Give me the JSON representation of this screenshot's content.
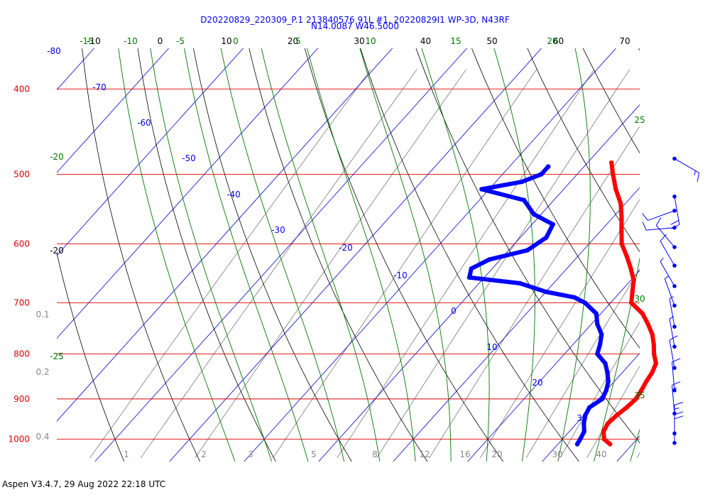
{
  "header": {
    "line1": "D20220829_220309_P.1 213840576 91L #1, 20220829I1 WP-3D, N43RF",
    "line2": "N14.0087 W46.5000"
  },
  "footer": "Aspen V3.4.7, 29 Aug 2022  22:18 UTC",
  "colors": {
    "isobar": "#dd0000",
    "isotherm": "#000000",
    "dry_adiabat": "#000000",
    "moist_adiabat": "#007700",
    "mixing_ratio": "#777777",
    "temperature": "#ff0000",
    "dewpoint": "#0000ff",
    "wind_barb": "#0000ff",
    "top_scale": "#007700"
  },
  "chart_data": {
    "type": "skew-t",
    "pressure_range_hpa": [
      1025,
      375
    ],
    "temperature_range_c": [
      -20,
      45
    ],
    "isobars": [
      "400",
      "500",
      "600",
      "700",
      "800",
      "900",
      "1000"
    ],
    "top_temperature_labels": [
      "-10",
      "0",
      "10",
      "20",
      "30",
      "40",
      "50",
      "60",
      "70"
    ],
    "top_theta_labels": [
      "-15",
      "-10",
      "-5",
      "0",
      "5",
      "10",
      "15",
      "20"
    ],
    "isotherm_labels": [
      "-80",
      "-70",
      "-60",
      "-50",
      "-40",
      "-30",
      "-20",
      "-10",
      "0",
      "10",
      "20",
      "30"
    ],
    "left_edge_labels": [
      "-20",
      "-20",
      "-25"
    ],
    "right_edge_labels": [
      "25",
      "30",
      "35"
    ],
    "mixing_ratio_labels": [
      "1",
      "2",
      "3",
      "5",
      "8",
      "12",
      "16",
      "20",
      "30",
      "40"
    ],
    "left_scale_labels": [
      "0.1",
      "0.2",
      "0.4"
    ],
    "temperature_profile": [
      [
        1013,
        27.0
      ],
      [
        1000,
        25.6
      ],
      [
        980,
        24.6
      ],
      [
        960,
        24.2
      ],
      [
        940,
        24.4
      ],
      [
        920,
        24.8
      ],
      [
        900,
        25.0
      ],
      [
        880,
        24.7
      ],
      [
        860,
        24.3
      ],
      [
        840,
        24.0
      ],
      [
        820,
        23.4
      ],
      [
        800,
        22.0
      ],
      [
        780,
        20.8
      ],
      [
        760,
        19.4
      ],
      [
        740,
        17.6
      ],
      [
        720,
        15.6
      ],
      [
        700,
        12.8
      ],
      [
        680,
        11.6
      ],
      [
        660,
        10.4
      ],
      [
        640,
        8.6
      ],
      [
        620,
        6.6
      ],
      [
        600,
        4.4
      ],
      [
        580,
        2.8
      ],
      [
        560,
        1.2
      ],
      [
        540,
        -0.6
      ],
      [
        520,
        -3.0
      ],
      [
        500,
        -5.2
      ],
      [
        485,
        -6.8
      ]
    ],
    "dewpoint_profile": [
      [
        1013,
        22.6
      ],
      [
        1000,
        22.4
      ],
      [
        980,
        22.0
      ],
      [
        960,
        21.0
      ],
      [
        940,
        20.2
      ],
      [
        920,
        19.8
      ],
      [
        900,
        20.5
      ],
      [
        880,
        20.0
      ],
      [
        860,
        19.2
      ],
      [
        840,
        18.0
      ],
      [
        820,
        16.6
      ],
      [
        800,
        14.4
      ],
      [
        780,
        13.6
      ],
      [
        760,
        12.6
      ],
      [
        740,
        10.8
      ],
      [
        720,
        9.4
      ],
      [
        700,
        6.6
      ],
      [
        690,
        4.5
      ],
      [
        680,
        0.0
      ],
      [
        665,
        -4.5
      ],
      [
        655,
        -12.0
      ],
      [
        640,
        -12.8
      ],
      [
        625,
        -11.5
      ],
      [
        610,
        -7.5
      ],
      [
        590,
        -6.5
      ],
      [
        570,
        -7.2
      ],
      [
        555,
        -11.0
      ],
      [
        535,
        -14.0
      ],
      [
        520,
        -21.0
      ],
      [
        510,
        -16.5
      ],
      [
        500,
        -14.8
      ],
      [
        490,
        -14.8
      ]
    ],
    "wind_barb_levels": [
      [
        480,
        "120",
        15
      ],
      [
        530,
        "170",
        20
      ],
      [
        550,
        "250",
        10
      ],
      [
        575,
        "265",
        10
      ],
      [
        605,
        "320",
        10
      ],
      [
        635,
        "330",
        10
      ],
      [
        670,
        "330",
        5
      ],
      [
        705,
        "340",
        5
      ],
      [
        745,
        "350",
        5
      ],
      [
        785,
        "350",
        5
      ],
      [
        830,
        "350",
        10
      ],
      [
        880,
        "355",
        10
      ],
      [
        935,
        "355",
        15
      ],
      [
        985,
        "360",
        15
      ],
      [
        1010,
        "360",
        20
      ]
    ]
  }
}
